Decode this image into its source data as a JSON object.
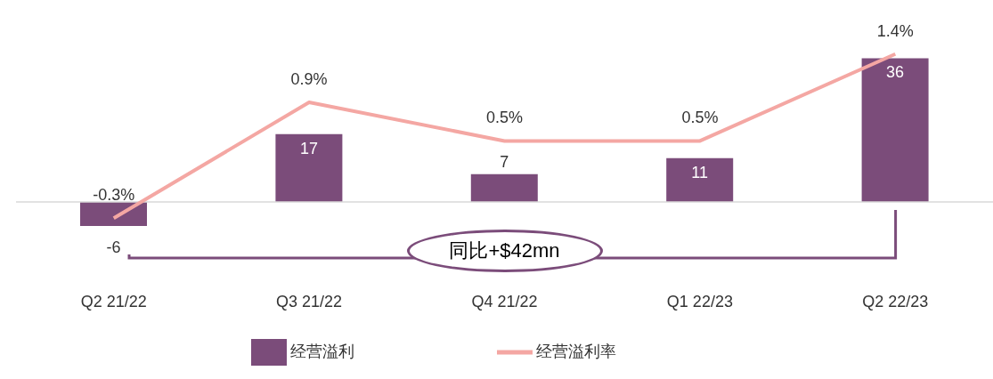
{
  "chart_data": {
    "type": "bar",
    "categories": [
      "Q2 21/22",
      "Q3 21/22",
      "Q4 21/22",
      "Q1 22/23",
      "Q2 22/23"
    ],
    "series": [
      {
        "name": "经营溢利",
        "color": "#7b4c7a",
        "values": [
          -6,
          17,
          7,
          11,
          36
        ]
      },
      {
        "name": "经营溢利率",
        "type": "line",
        "axis": "y2",
        "color": "#f4a7a3",
        "values": [
          -0.3,
          0.9,
          0.5,
          0.5,
          1.4
        ],
        "value_labels": [
          "-0.3%",
          "0.9%",
          "0.5%",
          "0.5%",
          "1.4%"
        ]
      }
    ],
    "data_labels": true,
    "legend": "bottom",
    "marker": "none",
    "annotations": [
      "同比+$42mn"
    ]
  }
}
